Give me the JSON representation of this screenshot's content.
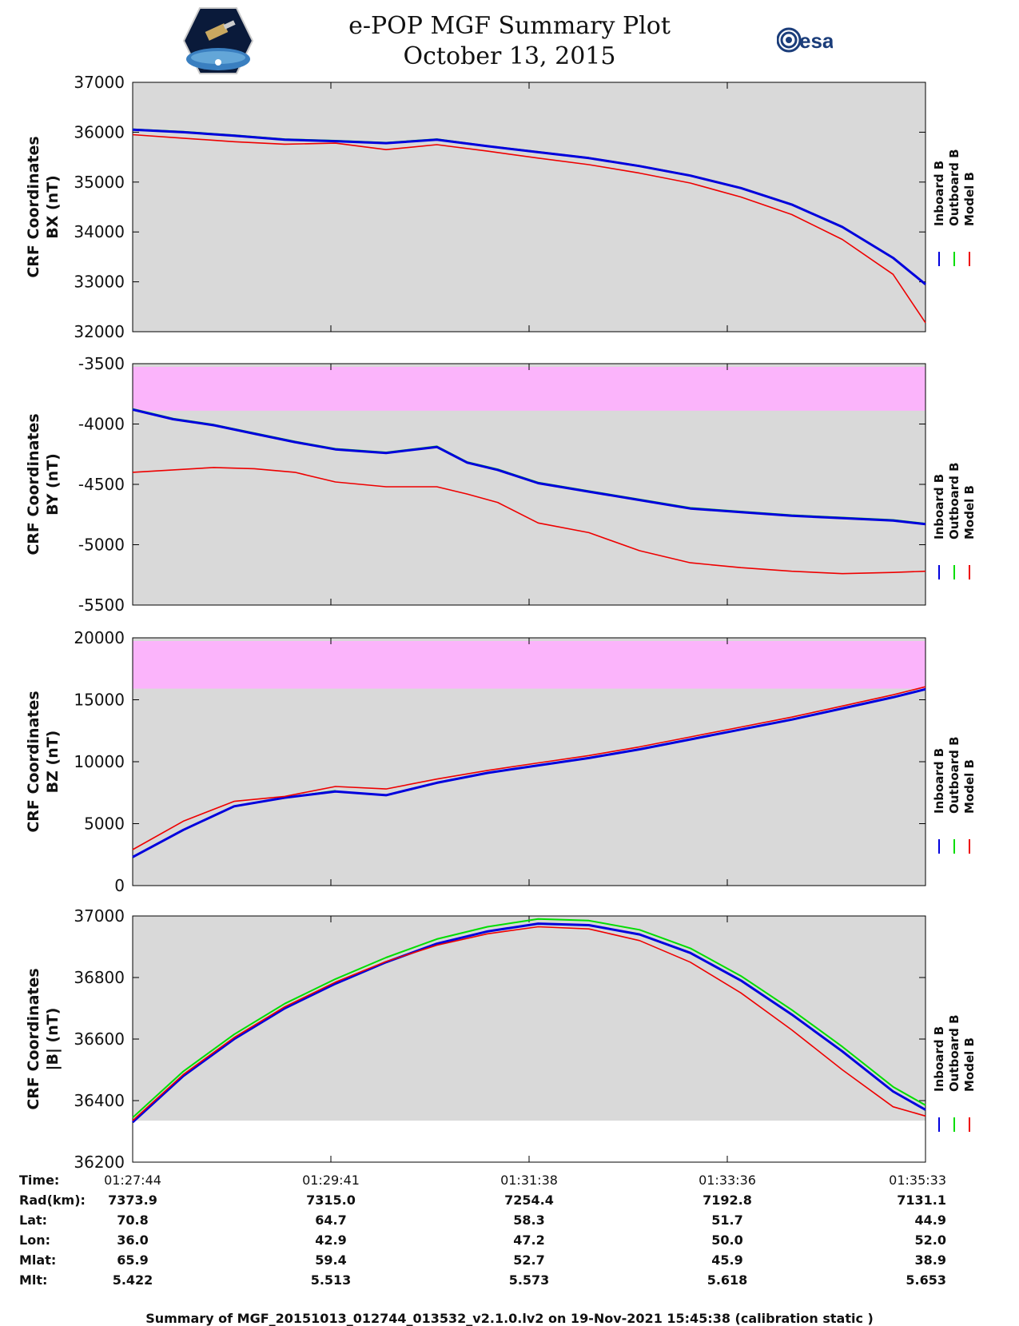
{
  "header": {
    "title_line1": "e-POP MGF Summary Plot",
    "title_line2": "October 13, 2015",
    "esa_text": "esa"
  },
  "legend_labels": [
    "Inboard B",
    "Outboard B",
    "Model B"
  ],
  "colors": {
    "inboard": "#0000dd",
    "outboard": "#00dd00",
    "model": "#ee0000",
    "panel_bg": "#d9d9d9",
    "out_of_range": "#fbb4fb"
  },
  "chart_data": [
    {
      "type": "line",
      "ylabel_line1": "CRF Coordinates",
      "ylabel_line2": "BX (nT)",
      "ylim": [
        32000,
        37000
      ],
      "yticks": [
        32000,
        33000,
        34000,
        35000,
        36000,
        37000
      ],
      "x_minutes": [
        0,
        0.5,
        1,
        1.5,
        2,
        2.5,
        3,
        3.5,
        4,
        4.5,
        5,
        5.5,
        6,
        6.5,
        7,
        7.5,
        7.82
      ],
      "series": [
        {
          "name": "Inboard B",
          "values": [
            36050,
            36000,
            35930,
            35850,
            35820,
            35780,
            35850,
            35720,
            35600,
            35480,
            35320,
            35130,
            34880,
            34550,
            34100,
            33480,
            32950
          ]
        },
        {
          "name": "Outboard B",
          "values": [
            36060,
            36010,
            35940,
            35860,
            35830,
            35790,
            35860,
            35725,
            35605,
            35485,
            35325,
            35135,
            34885,
            34555,
            34105,
            33485,
            32955
          ]
        },
        {
          "name": "Model B",
          "values": [
            35950,
            35880,
            35810,
            35760,
            35780,
            35650,
            35750,
            35620,
            35480,
            35350,
            35180,
            34980,
            34700,
            34350,
            33850,
            33150,
            32180
          ]
        }
      ]
    },
    {
      "type": "line",
      "ylabel_line1": "CRF Coordinates",
      "ylabel_line2": "BY (nT)",
      "ylim": [
        -5500,
        -3500
      ],
      "yticks": [
        -5500,
        -5000,
        -4500,
        -4000,
        -3500
      ],
      "shaded_range": [
        -3890,
        -3500
      ],
      "x_minutes": [
        0,
        0.4,
        0.8,
        1.2,
        1.6,
        2,
        2.5,
        3,
        3.3,
        3.6,
        4,
        4.5,
        5,
        5.5,
        6,
        6.5,
        7,
        7.5,
        7.82
      ],
      "series": [
        {
          "name": "Inboard B",
          "values": [
            -3880,
            -3960,
            -4010,
            -4080,
            -4150,
            -4210,
            -4240,
            -4190,
            -4320,
            -4380,
            -4490,
            -4560,
            -4630,
            -4700,
            -4730,
            -4760,
            -4780,
            -4800,
            -4830
          ]
        },
        {
          "name": "Outboard B",
          "values": [
            -3875,
            -3955,
            -4005,
            -4075,
            -4145,
            -4205,
            -4235,
            -4185,
            -4315,
            -4375,
            -4485,
            -4555,
            -4625,
            -4695,
            -4725,
            -4755,
            -4775,
            -4795,
            -4825
          ]
        },
        {
          "name": "Model B",
          "values": [
            -4400,
            -4380,
            -4360,
            -4370,
            -4400,
            -4480,
            -4520,
            -4520,
            -4580,
            -4650,
            -4820,
            -4900,
            -5050,
            -5150,
            -5190,
            -5220,
            -5240,
            -5230,
            -5220
          ]
        }
      ]
    },
    {
      "type": "line",
      "ylabel_line1": "CRF Coordinates",
      "ylabel_line2": "BZ (nT)",
      "ylim": [
        0,
        20000
      ],
      "yticks": [
        0,
        5000,
        10000,
        15000,
        20000
      ],
      "shaded_range": [
        15900,
        20000
      ],
      "x_minutes": [
        0,
        0.5,
        1,
        1.5,
        2,
        2.5,
        3,
        3.5,
        4,
        4.5,
        5,
        5.5,
        6,
        6.5,
        7,
        7.5,
        7.82
      ],
      "series": [
        {
          "name": "Inboard B",
          "values": [
            2300,
            4500,
            6400,
            7100,
            7600,
            7300,
            8300,
            9100,
            9700,
            10300,
            11000,
            11800,
            12600,
            13400,
            14300,
            15200,
            15850
          ]
        },
        {
          "name": "Outboard B",
          "values": [
            2300,
            4500,
            6400,
            7100,
            7650
          ]
        },
        {
          "name": "Model B",
          "values": [
            2900,
            5200,
            6800,
            7200,
            8000,
            7800,
            8600,
            9300,
            9900,
            10500,
            11200,
            12000,
            12800,
            13600,
            14500,
            15400,
            16050
          ]
        }
      ]
    },
    {
      "type": "line",
      "ylabel_line1": "CRF Coordinates",
      "ylabel_line2": "|B| (nT)",
      "ylim": [
        36200,
        37000
      ],
      "yticks": [
        36200,
        36400,
        36600,
        36800,
        37000
      ],
      "shaded_range": [
        36335,
        37000
      ],
      "x_minutes": [
        0,
        0.5,
        1,
        1.5,
        2,
        2.5,
        3,
        3.5,
        4,
        4.5,
        5,
        5.5,
        6,
        6.5,
        7,
        7.5,
        7.82
      ],
      "series": [
        {
          "name": "Inboard B",
          "values": [
            36330,
            36480,
            36600,
            36700,
            36780,
            36850,
            36910,
            36950,
            36975,
            36970,
            36940,
            36880,
            36790,
            36680,
            36560,
            36430,
            36370
          ]
        },
        {
          "name": "Outboard B",
          "values": [
            36345,
            36495,
            36615,
            36715,
            36795,
            36865,
            36925,
            36965,
            36990,
            36985,
            36955,
            36895,
            36805,
            36695,
            36575,
            36445,
            36385
          ]
        },
        {
          "name": "Model B",
          "values": [
            36335,
            36485,
            36605,
            36705,
            36785,
            36852,
            36905,
            36942,
            36965,
            36958,
            36920,
            36850,
            36750,
            36630,
            36500,
            36380,
            36350
          ]
        }
      ]
    }
  ],
  "orbit_table": {
    "row_labels": [
      "Time:",
      "Rad(km):",
      "Lat:",
      "Lon:",
      "Mlat:",
      "Mlt:"
    ],
    "columns": [
      [
        "01:27:44",
        "7373.9",
        "70.8",
        "36.0",
        "65.9",
        "5.422"
      ],
      [
        "01:29:41",
        "7315.0",
        "64.7",
        "42.9",
        "59.4",
        "5.513"
      ],
      [
        "01:31:38",
        "7254.4",
        "58.3",
        "47.2",
        "52.7",
        "5.573"
      ],
      [
        "01:33:36",
        "7192.8",
        "51.7",
        "50.0",
        "45.9",
        "5.618"
      ],
      [
        "01:35:33",
        "7131.1",
        "44.9",
        "52.0",
        "38.9",
        "5.653"
      ]
    ]
  },
  "footer": "Summary of MGF_20151013_012744_013532_v2.1.0.lv2 on 19-Nov-2021 15:45:38 (calibration static )"
}
